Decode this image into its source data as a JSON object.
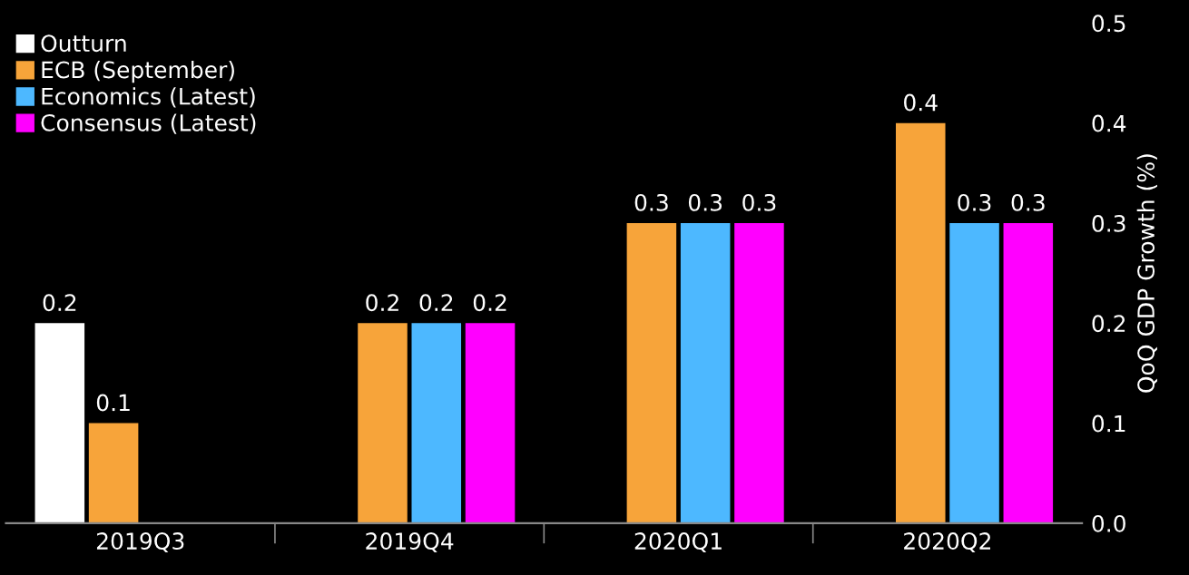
{
  "chart_data": {
    "type": "bar",
    "ylabel": "QoQ GDP Growth (%)",
    "categories": [
      "2019Q3",
      "2019Q4",
      "2020Q1",
      "2020Q2"
    ],
    "series": [
      {
        "name": "Outturn",
        "color": "#ffffff",
        "values": [
          0.2,
          null,
          null,
          null
        ]
      },
      {
        "name": "ECB (September)",
        "color": "#f7a43a",
        "values": [
          0.1,
          0.2,
          0.3,
          0.4
        ]
      },
      {
        "name": "Economics (Latest)",
        "color": "#4db8ff",
        "values": [
          null,
          0.2,
          0.3,
          0.3
        ]
      },
      {
        "name": "Consensus (Latest)",
        "color": "#ff00ff",
        "values": [
          null,
          0.2,
          0.3,
          0.3
        ]
      }
    ],
    "ylim": [
      0,
      0.5
    ],
    "yticks": [
      {
        "value": 0,
        "label": "0.0"
      },
      0.1,
      0.2,
      0.3,
      0.4,
      0.5
    ],
    "data_labels": true,
    "legend": "top left",
    "grid": false
  }
}
